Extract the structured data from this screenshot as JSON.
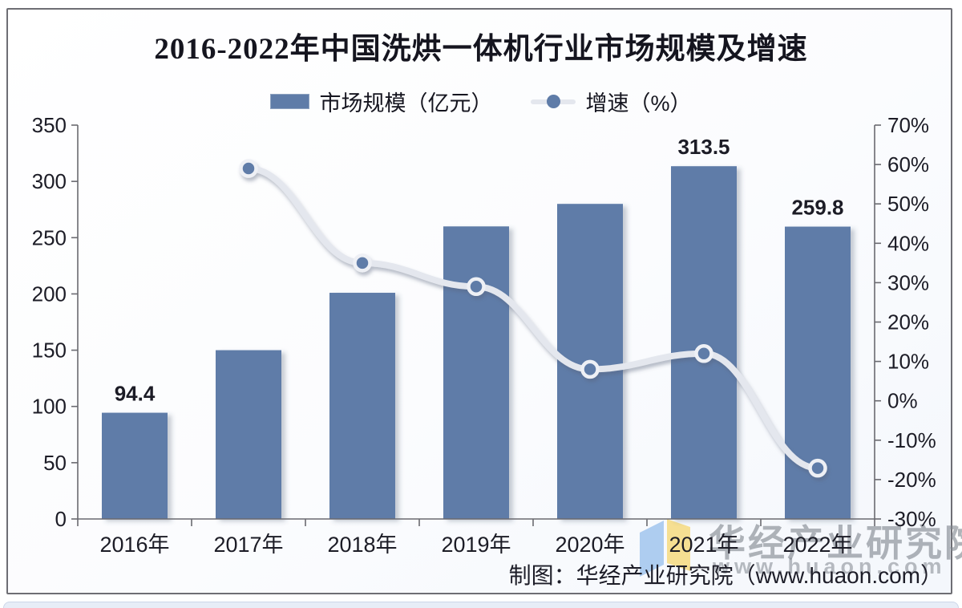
{
  "chart_data": {
    "type": "bar",
    "title": "2016-2022年中国洗烘一体机行业市场规模及增速",
    "categories": [
      "2016年",
      "2017年",
      "2018年",
      "2019年",
      "2020年",
      "2021年",
      "2022年"
    ],
    "series": [
      {
        "name": "市场规模（亿元）",
        "type": "bar",
        "axis": "left",
        "values": [
          94.4,
          150,
          201,
          260,
          280,
          313.5,
          259.8
        ],
        "point_labels": [
          "94.4",
          "",
          "",
          "",
          "",
          "313.5",
          "259.8"
        ],
        "color": "#5f7ca8"
      },
      {
        "name": "增速（%）",
        "type": "line",
        "axis": "right",
        "values": [
          null,
          59,
          35,
          29,
          8,
          12,
          -17.1
        ],
        "color": "#e4e7ee",
        "marker_fill": "#5f7ca8",
        "marker_stroke": "#eef0f5"
      }
    ],
    "left_axis": {
      "min": 0,
      "max": 350,
      "step": 50,
      "ticks": [
        "0",
        "50",
        "100",
        "150",
        "200",
        "250",
        "300",
        "350"
      ]
    },
    "right_axis": {
      "min": -30,
      "max": 70,
      "step": 10,
      "ticks": [
        "-30%",
        "-20%",
        "-10%",
        "0%",
        "10%",
        "20%",
        "30%",
        "40%",
        "50%",
        "60%",
        "70%"
      ]
    },
    "grid": "off",
    "legend_position": "top",
    "axis_color": "#6a6a70",
    "text_color": "#1c1c26"
  },
  "watermark": {
    "brand": "华经产业研究院",
    "url": "www.huaon.com",
    "logo_blue": "#aecdf0",
    "logo_yellow": "#f6df92"
  },
  "footer": {
    "credit": "制图：华经产业研究院（www.huaon.com）"
  }
}
